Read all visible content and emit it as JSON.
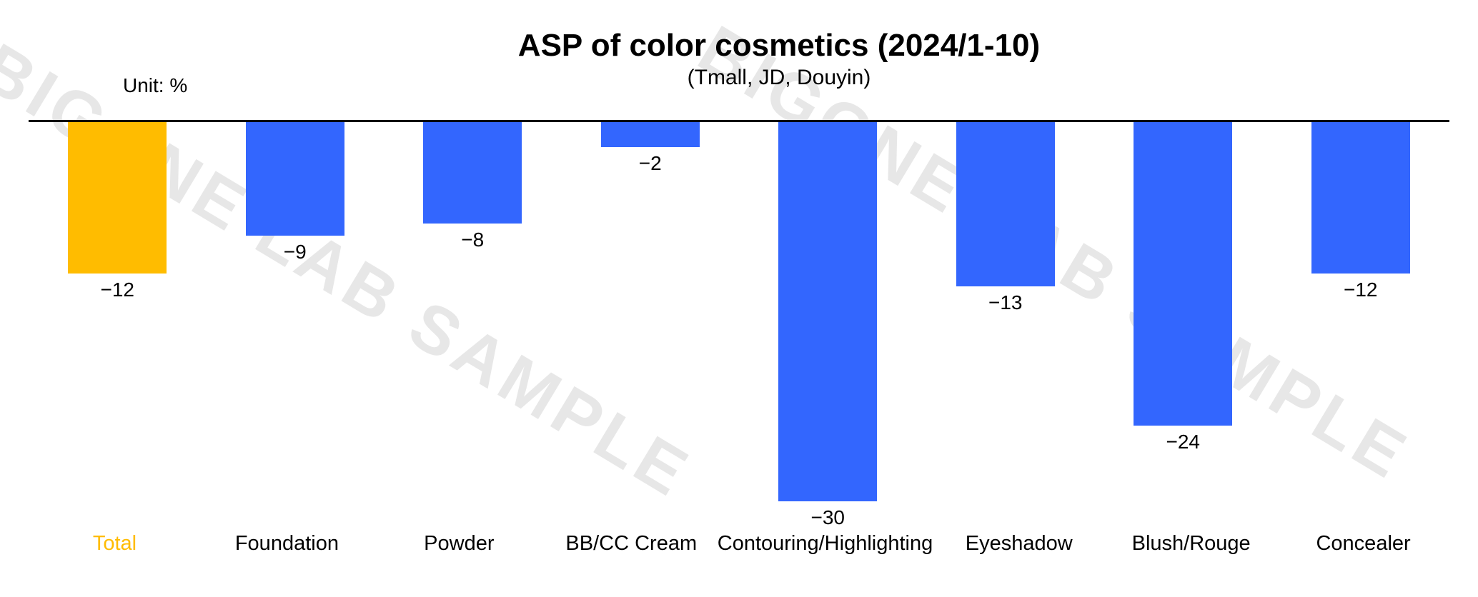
{
  "header": {
    "title": "ASP of color cosmetics (2024/1-10)",
    "subtitle": "(Tmall, JD, Douyin)",
    "unit_label": "Unit: %"
  },
  "watermark": {
    "text": "BIGONE LAB SAMPLE",
    "color": "#E7E7E7"
  },
  "chart_data": {
    "type": "bar",
    "title": "ASP of color cosmetics (2024/1-10)",
    "subtitle": "(Tmall, JD, Douyin)",
    "unit": "%",
    "categories": [
      "Total",
      "Foundation",
      "Powder",
      "BB/CC Cream",
      "Contouring/Highlighting",
      "Eyeshadow",
      "Blush/Rouge",
      "Concealer"
    ],
    "values": [
      -12,
      -9,
      -8,
      -2,
      -30,
      -13,
      -24,
      -12
    ],
    "value_labels": [
      "−12",
      "−9",
      "−8",
      "−2",
      "−30",
      "−13",
      "−24",
      "−12"
    ],
    "orientation": "vertical",
    "baseline": 0,
    "ylim": [
      -32,
      0
    ],
    "gridlines": false,
    "legend": "none",
    "value_label_position": "below-bar",
    "colors": {
      "default_bar": "#3366FE",
      "highlight_bar": "#FFBC00",
      "highlight_category": "Total",
      "highlight_label": "#FFBC00",
      "axis_line": "#000000",
      "text": "#000000"
    }
  }
}
